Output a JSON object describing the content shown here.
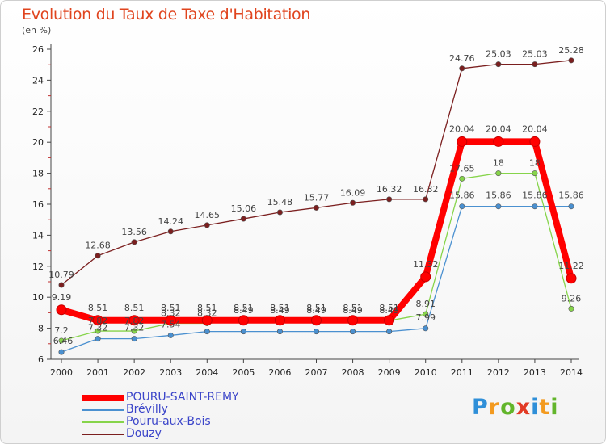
{
  "title": "Evolution du Taux de Taxe d'Habitation",
  "subtitle": "(en %)",
  "logo": {
    "text": "Proxiti",
    "letters": [
      {
        "ch": "P",
        "color": "#2f8fd8"
      },
      {
        "ch": "r",
        "color": "#f39a1f"
      },
      {
        "ch": "o",
        "color": "#62b52b"
      },
      {
        "ch": "x",
        "color": "#e23a25"
      },
      {
        "ch": "i",
        "color": "#2f8fd8"
      },
      {
        "ch": "t",
        "color": "#f39a1f"
      },
      {
        "ch": "i",
        "color": "#62b52b"
      }
    ]
  },
  "colors": {
    "axis": "#444444",
    "grid": "#dddddd"
  },
  "chart_data": {
    "type": "line",
    "x": [
      "2000",
      "2001",
      "2002",
      "2003",
      "2004",
      "2005",
      "2006",
      "2007",
      "2008",
      "2009",
      "2010",
      "2011",
      "2012",
      "2013",
      "2014"
    ],
    "ylim": [
      6,
      26
    ],
    "yticks": [
      6,
      8,
      10,
      12,
      14,
      16,
      18,
      20,
      22,
      24,
      26
    ],
    "grid": false,
    "legend_position": "bottom-left",
    "series": [
      {
        "name": "Douzy",
        "color": "#7b1f1f",
        "values": [
          10.79,
          12.68,
          13.56,
          14.24,
          14.65,
          15.06,
          15.48,
          15.77,
          16.09,
          16.32,
          16.32,
          24.76,
          25.03,
          25.03,
          25.28
        ],
        "labels": [
          "10.79",
          "12.68",
          "13.56",
          "14.24",
          "14.65",
          "15.06",
          "15.48",
          "15.77",
          "16.09",
          "16.32",
          "16.32",
          "24.76",
          "25.03",
          "25.03",
          "25.28"
        ]
      },
      {
        "name": "Brévilly",
        "color": "#4a90d0",
        "values": [
          6.46,
          7.32,
          7.32,
          7.54,
          7.79,
          7.79,
          7.79,
          7.79,
          7.79,
          7.79,
          7.99,
          15.86,
          15.86,
          15.86,
          15.86
        ],
        "labels": [
          "6.46",
          "7.32",
          "7.32",
          "7.54",
          "",
          "",
          "",
          "",
          "",
          "",
          "7.99",
          "15.86",
          "15.86",
          "15.86",
          "15.86"
        ]
      },
      {
        "name": "Pouru-aux-Bois",
        "color": "#86d44a",
        "values": [
          7.2,
          7.82,
          7.82,
          8.32,
          8.32,
          8.49,
          8.49,
          8.49,
          8.49,
          8.49,
          8.91,
          17.65,
          18,
          18,
          9.26
        ],
        "labels": [
          "7.2",
          "7.82",
          "7.82",
          "8.32",
          "8.32",
          "8.49",
          "8.49",
          "8.49",
          "8.49",
          "8.49",
          "8.91",
          "17.65",
          "18",
          "18",
          "9.26"
        ]
      },
      {
        "name": "POURU-SAINT-REMY",
        "color": "#ff0000",
        "values": [
          9.19,
          8.51,
          8.51,
          8.51,
          8.51,
          8.51,
          8.51,
          8.51,
          8.51,
          8.51,
          11.32,
          20.04,
          20.04,
          20.04,
          11.22
        ],
        "labels": [
          "9.19",
          "8.51",
          "8.51",
          "8.51",
          "8.51",
          "8.51",
          "8.51",
          "8.51",
          "8.51",
          "8.51",
          "11.32",
          "20.04",
          "20.04",
          "20.04",
          "11.22"
        ]
      }
    ]
  },
  "legend": [
    {
      "label": "POURU-SAINT-REMY",
      "color": "#ff0000"
    },
    {
      "label": "Brévilly",
      "color": "#4a90d0"
    },
    {
      "label": "Pouru-aux-Bois",
      "color": "#86d44a"
    },
    {
      "label": "Douzy",
      "color": "#7b1f1f"
    }
  ]
}
